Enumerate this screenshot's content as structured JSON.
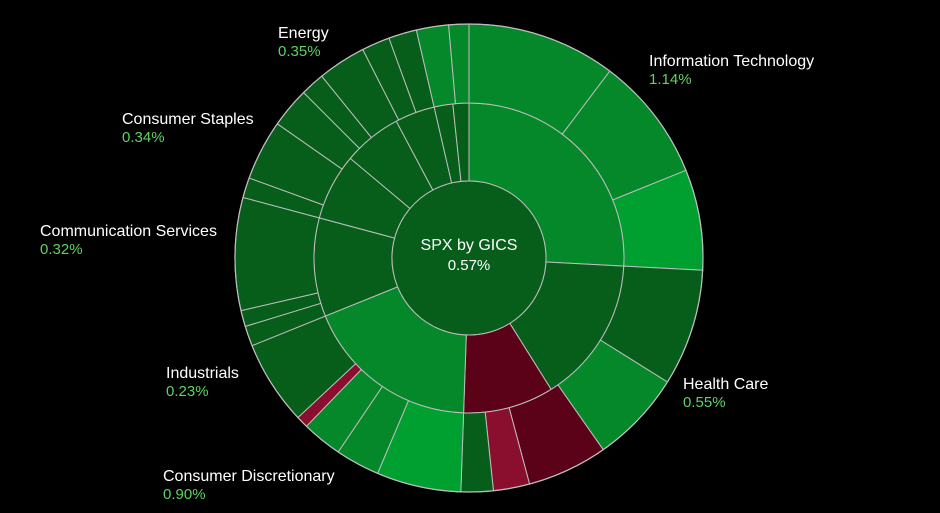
{
  "chart_data": {
    "type": "sunburst",
    "center": {
      "title": "SPX by GICS",
      "value": "0.57%"
    },
    "colors": {
      "positive_strong": "#00a030",
      "positive": "#04882a",
      "positive_dark": "#065e1a",
      "negative": "#5b0118",
      "negative_light": "#8a0f2e",
      "separator": "#bdbdbd",
      "label_value": "#5fd35f"
    },
    "sectors": [
      {
        "name": "Information Technology",
        "value": "1.14%"
      },
      {
        "name": "Health Care",
        "value": "0.55%"
      },
      {
        "name": "Consumer Discretionary",
        "value": "0.90%"
      },
      {
        "name": "Industrials",
        "value": "0.23%"
      },
      {
        "name": "Communication Services",
        "value": "0.32%"
      },
      {
        "name": "Consumer Staples",
        "value": "0.34%"
      },
      {
        "name": "Energy",
        "value": "0.35%"
      }
    ]
  }
}
